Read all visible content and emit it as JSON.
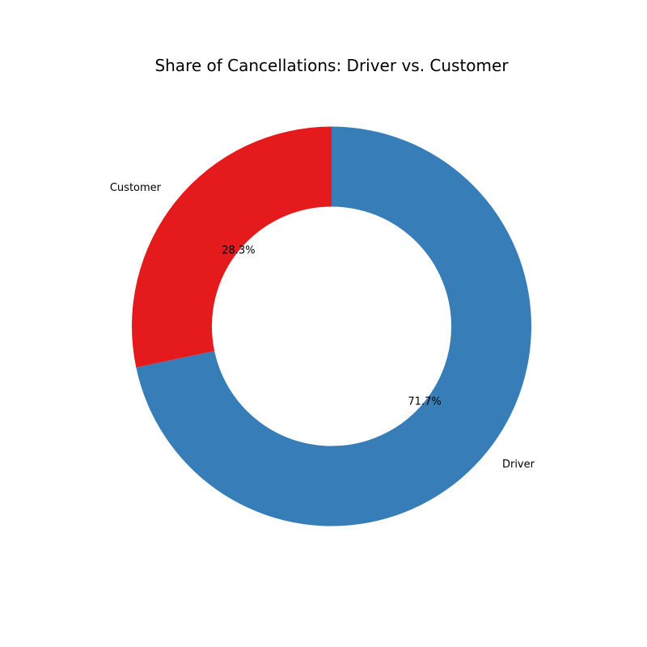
{
  "chart_data": {
    "type": "pie",
    "style": "donut",
    "title": "Share of Cancellations: Driver vs. Customer",
    "slices": [
      {
        "label": "Driver",
        "value": 71.7,
        "pct_label": "71.7%",
        "color": "#377eb8"
      },
      {
        "label": "Customer",
        "value": 28.3,
        "pct_label": "28.3%",
        "color": "#e41a1c"
      }
    ]
  }
}
